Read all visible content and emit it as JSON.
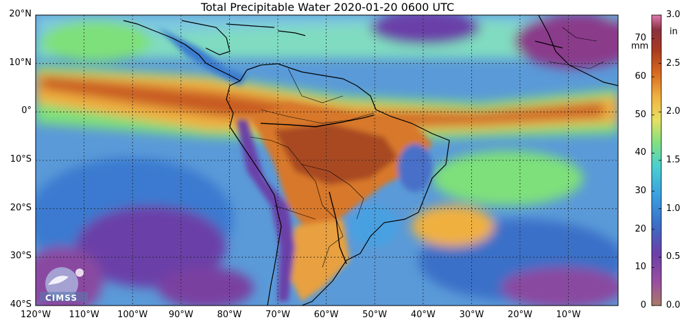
{
  "title": "Total Precipitable Water  2020-01-20 0600 UTC",
  "lat_labels": [
    "20°N",
    "10°N",
    "0°",
    "10°S",
    "20°S",
    "30°S",
    "40°S"
  ],
  "lon_labels": [
    "120°W",
    "110°W",
    "100°W",
    "90°W",
    "80°W",
    "70°W",
    "60°W",
    "50°W",
    "40°W",
    "30°W",
    "20°W",
    "10°W"
  ],
  "colorbar": {
    "mm_unit": "mm",
    "in_unit": "in",
    "mm_ticks": [
      "70",
      "60",
      "50",
      "40",
      "30",
      "20",
      "10",
      "0"
    ],
    "in_ticks": [
      "3.0",
      "2.5",
      "2.0",
      "1.5",
      "1.0",
      "0.5",
      "0.0"
    ],
    "colors": [
      "#a87a6a",
      "#9a4fa0",
      "#6a3fa8",
      "#4a6fc8",
      "#3a9ee0",
      "#4ad0d8",
      "#7ee07a",
      "#e8e060",
      "#f0b040",
      "#d86a20",
      "#a83a20",
      "#8a3040",
      "#e07ab0"
    ]
  },
  "logo": {
    "text": "CIMSS",
    "name": "cimss-logo-icon"
  },
  "colors": {
    "very_dry": "#8a3a8a",
    "dry": "#3a7ad0",
    "moist": "#7ad8a0",
    "wet": "#f0a040",
    "very_wet": "#9a3020",
    "grid": "#222222",
    "coast": "#000000"
  }
}
